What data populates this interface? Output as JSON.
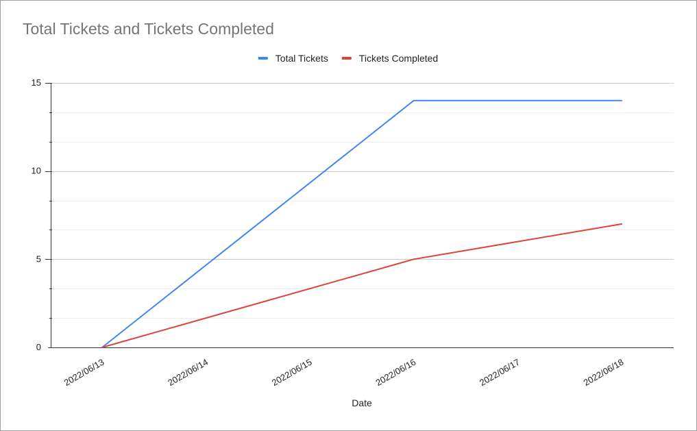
{
  "chart_data": {
    "type": "line",
    "title": "Total Tickets and Tickets Completed",
    "xlabel": "Date",
    "ylabel": "",
    "categories": [
      "2022/06/13",
      "2022/06/14",
      "2022/06/15",
      "2022/06/16",
      "2022/06/17",
      "2022/06/18"
    ],
    "series": [
      {
        "name": "Total Tickets",
        "color": "#4285f4",
        "points": [
          {
            "x": "2022/06/13",
            "y": 0
          },
          {
            "x": "2022/06/16",
            "y": 14
          },
          {
            "x": "2022/06/18",
            "y": 14
          }
        ]
      },
      {
        "name": "Tickets Completed",
        "color": "#db4437",
        "points": [
          {
            "x": "2022/06/13",
            "y": 0
          },
          {
            "x": "2022/06/16",
            "y": 5
          },
          {
            "x": "2022/06/18",
            "y": 7
          }
        ]
      }
    ],
    "ylim": [
      0,
      15
    ],
    "yticks": [
      0,
      5,
      10,
      15
    ],
    "grid": true,
    "legend_position": "top"
  }
}
